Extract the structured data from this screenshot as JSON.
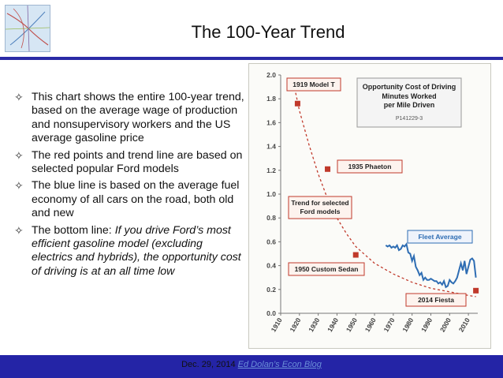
{
  "slide": {
    "title": "The 100-Year Trend",
    "bullets": [
      {
        "normal": "This chart shows the entire 100-year trend, based on the average wage of production and nonsupervisory workers and the US average gasoline price",
        "italic": ""
      },
      {
        "normal": "The red points and trend line are based on selected popular Ford models",
        "italic": ""
      },
      {
        "normal": "The blue line is based on the average fuel economy of all cars on the road, both old and new",
        "italic": ""
      },
      {
        "normal": "The bottom line: ",
        "italic": "If you drive Ford’s most efficient gasoline model (excluding electrics and hybrids), the opportunity cost of driving is at an all time low"
      }
    ],
    "footer_date": "Dec. 29, 2014",
    "footer_link": "Ed Dolan’s Econ Blog",
    "bullet_icon": "four-point-star-outline-icon"
  },
  "chart_data": {
    "type": "line",
    "title": "Opportunity Cost of Driving",
    "subtitle_lines": [
      "Minutes Worked",
      "per Mile Driven"
    ],
    "code": "P141229-3",
    "xlabel": "",
    "ylabel": "",
    "xlim": [
      1910,
      2015
    ],
    "ylim": [
      0,
      2.0
    ],
    "x_ticks": [
      "1910",
      "1920",
      "1930",
      "1940",
      "1950",
      "1960",
      "1970",
      "1980",
      "1990",
      "2000",
      "2010"
    ],
    "y_ticks": [
      "0.0",
      "0.2",
      "0.4",
      "0.6",
      "0.8",
      "1.0",
      "1.2",
      "1.4",
      "1.6",
      "1.8",
      "2.0"
    ],
    "series": [
      {
        "name": "Fleet Average",
        "color": "#2e6db3",
        "points": [
          [
            1966,
            0.57
          ],
          [
            1967,
            0.56
          ],
          [
            1968,
            0.57
          ],
          [
            1969,
            0.55
          ],
          [
            1970,
            0.56
          ],
          [
            1971,
            0.55
          ],
          [
            1972,
            0.57
          ],
          [
            1973,
            0.53
          ],
          [
            1974,
            0.54
          ],
          [
            1975,
            0.57
          ],
          [
            1976,
            0.56
          ],
          [
            1977,
            0.58
          ],
          [
            1978,
            0.51
          ],
          [
            1979,
            0.5
          ],
          [
            1980,
            0.44
          ],
          [
            1981,
            0.48
          ],
          [
            1982,
            0.39
          ],
          [
            1983,
            0.36
          ],
          [
            1984,
            0.32
          ],
          [
            1985,
            0.34
          ],
          [
            1986,
            0.28
          ],
          [
            1987,
            0.3
          ],
          [
            1988,
            0.28
          ],
          [
            1989,
            0.28
          ],
          [
            1990,
            0.29
          ],
          [
            1991,
            0.28
          ],
          [
            1992,
            0.27
          ],
          [
            1993,
            0.27
          ],
          [
            1994,
            0.25
          ],
          [
            1995,
            0.26
          ],
          [
            1996,
            0.24
          ],
          [
            1997,
            0.27
          ],
          [
            1998,
            0.22
          ],
          [
            1999,
            0.23
          ],
          [
            2000,
            0.28
          ],
          [
            2001,
            0.26
          ],
          [
            2002,
            0.25
          ],
          [
            2003,
            0.27
          ],
          [
            2004,
            0.3
          ],
          [
            2005,
            0.36
          ],
          [
            2006,
            0.42
          ],
          [
            2007,
            0.36
          ],
          [
            2008,
            0.44
          ],
          [
            2009,
            0.33
          ],
          [
            2010,
            0.39
          ],
          [
            2011,
            0.45
          ],
          [
            2012,
            0.46
          ],
          [
            2013,
            0.44
          ],
          [
            2014,
            0.3
          ]
        ]
      },
      {
        "name": "Trend for selected Ford models",
        "color": "#c0392b",
        "style": "dashed",
        "points": [
          [
            1918,
            1.85
          ],
          [
            1920,
            1.7
          ],
          [
            1925,
            1.42
          ],
          [
            1930,
            1.17
          ],
          [
            1935,
            0.96
          ],
          [
            1940,
            0.8
          ],
          [
            1945,
            0.67
          ],
          [
            1950,
            0.56
          ],
          [
            1960,
            0.42
          ],
          [
            1970,
            0.33
          ],
          [
            1980,
            0.26
          ],
          [
            1990,
            0.21
          ],
          [
            2000,
            0.18
          ],
          [
            2010,
            0.15
          ],
          [
            2014,
            0.14
          ]
        ]
      },
      {
        "name": "Ford models",
        "color": "#c0392b",
        "style": "markers",
        "points": [
          [
            1919,
            1.76
          ],
          [
            1935,
            1.21
          ],
          [
            1950,
            0.49
          ],
          [
            2014,
            0.19
          ]
        ]
      }
    ],
    "annotations": [
      {
        "text": "1919 Model T",
        "x": 1919,
        "y": 1.76
      },
      {
        "text": "1935 Phaeton",
        "x": 1935,
        "y": 1.21
      },
      {
        "text": "1950 Custom Sedan",
        "x": 1950,
        "y": 0.49
      },
      {
        "text": "2014 Fiesta",
        "x": 2014,
        "y": 0.19
      },
      {
        "text": "Fleet Average",
        "x": 2014,
        "y": 0.57
      },
      {
        "text": "Trend for selected",
        "x": 1938,
        "y": 0.8
      },
      {
        "text": "Ford models",
        "x": 1938,
        "y": 0.8
      }
    ],
    "grid": false,
    "legend": "none"
  }
}
